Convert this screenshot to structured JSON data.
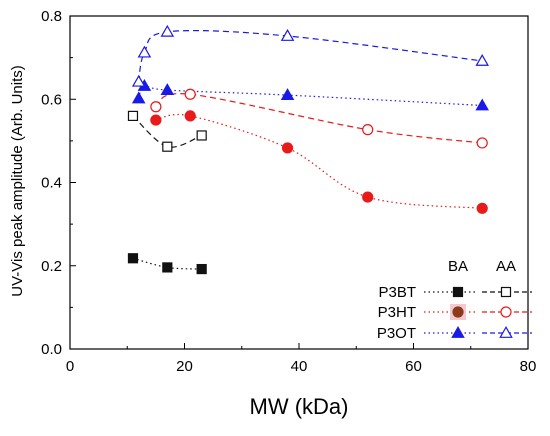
{
  "chart_data": {
    "type": "scatter",
    "xlabel": "MW (kDa)",
    "ylabel": "UV-Vis peak amplitude (Arb. Units)",
    "xlim": [
      0,
      80
    ],
    "ylim": [
      0.0,
      0.8
    ],
    "xticks": [
      "0",
      "20",
      "40",
      "60",
      "80"
    ],
    "yticks": [
      "0.0",
      "0.2",
      "0.4",
      "0.6",
      "0.8"
    ],
    "grid": false,
    "legend_position": "bottom-right",
    "legend_headers": [
      "BA",
      "AA"
    ],
    "colors": {
      "P3BT": "#111111",
      "P3HT": "#e81a1a",
      "P3HT_legend_marker": "#8b3a1a",
      "P3OT": "#1a1ae6"
    },
    "series": [
      {
        "name": "P3BT",
        "condition": "BA",
        "marker": "filled-square",
        "line": "dotted",
        "x": [
          11,
          17,
          23
        ],
        "y": [
          0.218,
          0.196,
          0.192
        ]
      },
      {
        "name": "P3BT",
        "condition": "AA",
        "marker": "open-square",
        "line": "dashed",
        "x": [
          11,
          17,
          23
        ],
        "y": [
          0.56,
          0.486,
          0.513
        ]
      },
      {
        "name": "P3HT",
        "condition": "BA",
        "marker": "filled-circle",
        "line": "dotted",
        "x": [
          15,
          21,
          38,
          52,
          72
        ],
        "y": [
          0.55,
          0.56,
          0.483,
          0.365,
          0.338
        ]
      },
      {
        "name": "P3HT",
        "condition": "AA",
        "marker": "open-circle",
        "line": "dashed",
        "x": [
          15,
          21,
          52,
          72
        ],
        "y": [
          0.582,
          0.612,
          0.527,
          0.495
        ]
      },
      {
        "name": "P3OT",
        "condition": "BA",
        "marker": "filled-triangle",
        "line": "dotted",
        "x": [
          12,
          13,
          17,
          38,
          72
        ],
        "y": [
          0.602,
          0.632,
          0.622,
          0.61,
          0.585
        ]
      },
      {
        "name": "P3OT",
        "condition": "AA",
        "marker": "open-triangle",
        "line": "dashed",
        "x": [
          12,
          13,
          17,
          38,
          72
        ],
        "y": [
          0.642,
          0.712,
          0.762,
          0.752,
          0.692
        ]
      }
    ]
  }
}
